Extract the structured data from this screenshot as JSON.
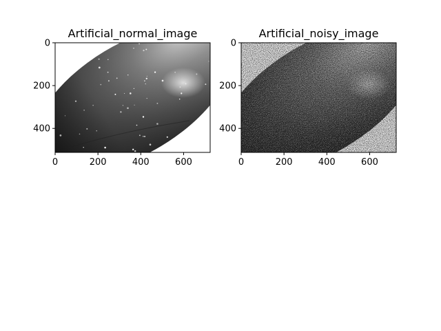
{
  "chart_data": [
    {
      "type": "image",
      "title": "Artificial_normal_image",
      "xlim": [
        0,
        724
      ],
      "ylim": [
        512,
        0
      ],
      "xticks": [
        0,
        200,
        400,
        600
      ],
      "yticks": [
        0,
        200,
        400
      ],
      "image_content": "grayscale-ellipse",
      "noise": false,
      "colors": {
        "background": "#ffffff",
        "dark": "#141414",
        "mid": "#6a6a6a",
        "highlight": "#d8d8d8"
      }
    },
    {
      "type": "image",
      "title": "Artificial_noisy_image",
      "xlim": [
        0,
        724
      ],
      "ylim": [
        512,
        0
      ],
      "xticks": [
        0,
        200,
        400,
        600
      ],
      "yticks": [
        0,
        200,
        400
      ],
      "image_content": "grayscale-ellipse",
      "noise": true,
      "colors": {
        "background": "#e6e6e6",
        "dark": "#141414",
        "mid": "#4a4a4a",
        "highlight": "#b8b8b8"
      }
    }
  ]
}
